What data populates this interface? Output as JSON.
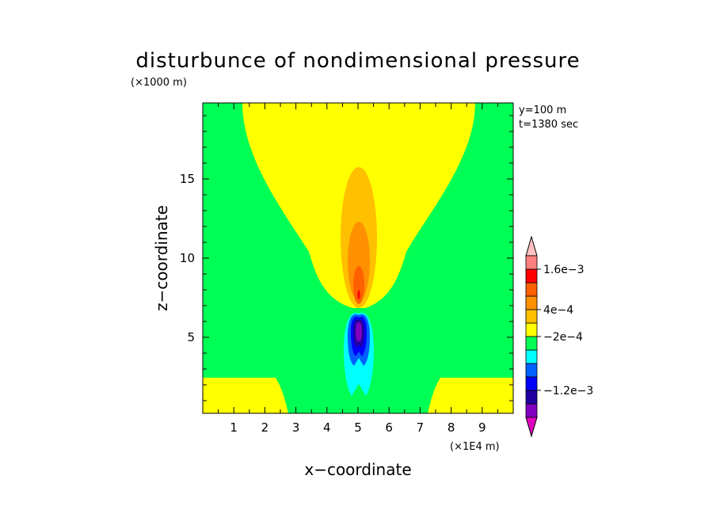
{
  "chart_data": {
    "type": "contour",
    "title": "disturbunce of nondimensional pressure",
    "xlabel": "x−coordinate",
    "ylabel": "z−coordinate",
    "x_unit": "(×1E4 m)",
    "y_unit": "(×1000 m)",
    "info": [
      "y=100 m",
      "t=1380 sec"
    ],
    "xlim": [
      0,
      10
    ],
    "ylim": [
      0.2,
      19.8
    ],
    "x_ticks": [
      "1",
      "2",
      "3",
      "4",
      "5",
      "6",
      "7",
      "8",
      "9"
    ],
    "y_ticks": [
      "5",
      "10",
      "15"
    ],
    "background_level_color": "#00ff55",
    "colorbar": {
      "colors": [
        "#e000c0",
        "#8000c0",
        "#2000a0",
        "#0000ff",
        "#0060ff",
        "#00ffff",
        "#00ff55",
        "#ffff00",
        "#ffc000",
        "#ff9000",
        "#ff6000",
        "#ff0000",
        "#ff8080",
        "#ffc0c0"
      ],
      "labels": [
        {
          "text": "−1.2e−3",
          "between": 2
        },
        {
          "text": "−2e−4",
          "between": 6
        },
        {
          "text": "4e−4",
          "between": 8
        },
        {
          "text": "1.6e−3",
          "between": 11
        }
      ]
    }
  }
}
